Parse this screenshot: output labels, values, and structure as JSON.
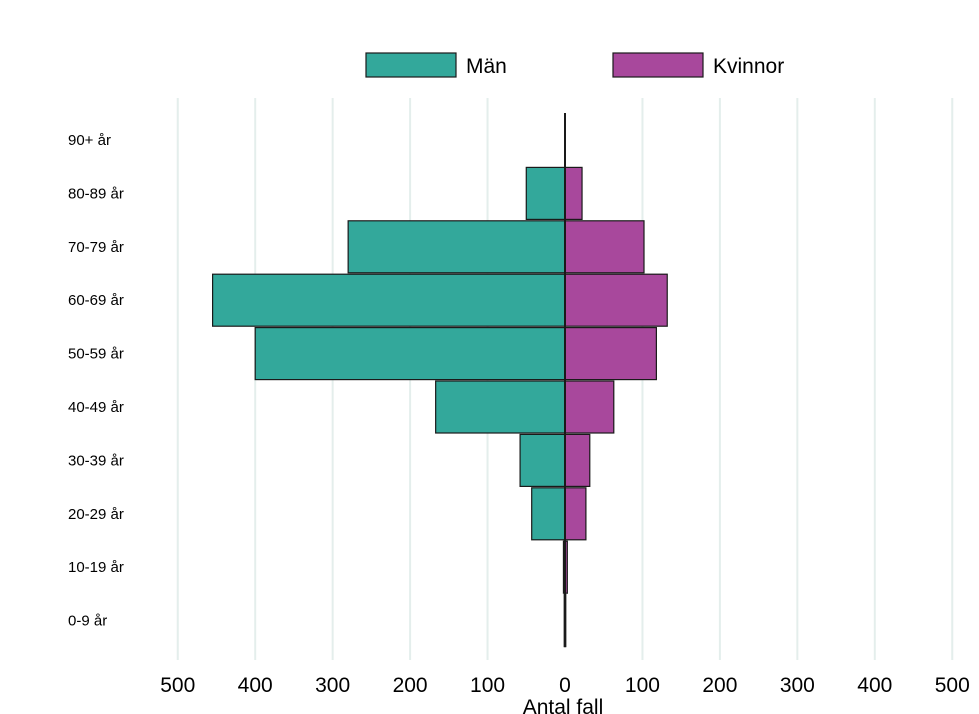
{
  "chart_data": {
    "type": "bar",
    "orientation": "horizontal-diverging",
    "title": "",
    "xlabel": "Antal fall",
    "ylabel": "",
    "categories": [
      "90+ år",
      "80-89 år",
      "70-79 år",
      "60-69 år",
      "50-59 år",
      "40-49 år",
      "30-39 år",
      "20-29 år",
      "10-19 år",
      "0-9 år"
    ],
    "series": [
      {
        "name": "Män",
        "values": [
          0,
          50,
          280,
          455,
          400,
          167,
          58,
          43,
          2,
          1
        ]
      },
      {
        "name": "Kvinnor",
        "values": [
          0,
          22,
          102,
          132,
          118,
          63,
          32,
          27,
          3,
          1
        ]
      }
    ],
    "xticks": [
      500,
      400,
      300,
      200,
      100,
      0,
      100,
      200,
      300,
      400,
      500
    ],
    "xlim": [
      -500,
      500
    ],
    "grid": "vertical",
    "legend": "top-center",
    "colors": {
      "Män": "#33a89b",
      "Kvinnor": "#a8489c",
      "grid": "#e4eeec",
      "outline": "#1a1a1a"
    }
  }
}
